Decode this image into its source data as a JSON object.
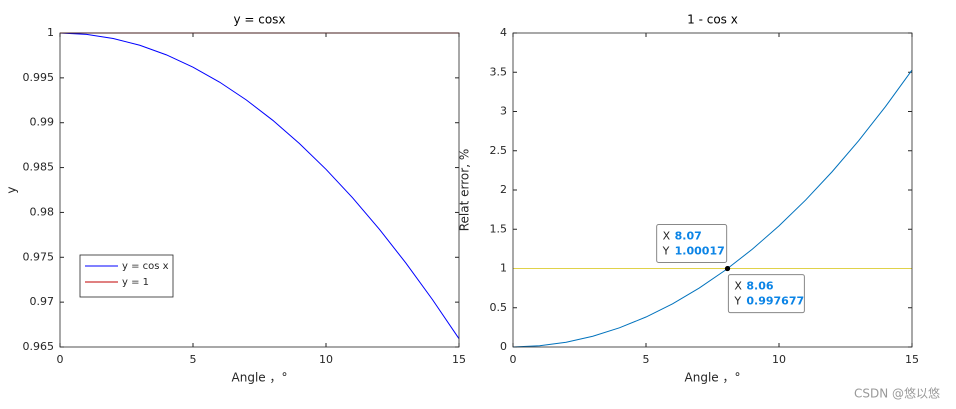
{
  "chart_data": [
    {
      "type": "line",
      "title": "y = cosx",
      "x_label": "Angle ，°",
      "y_label": "y",
      "x": [
        0,
        1,
        2,
        3,
        4,
        5,
        6,
        7,
        8,
        9,
        10,
        11,
        12,
        13,
        14,
        15
      ],
      "series": [
        {
          "name": "y = cos x",
          "color": "#0000ff",
          "values": [
            1,
            0.999848,
            0.999391,
            0.99863,
            0.997564,
            0.996195,
            0.994522,
            0.992546,
            0.990268,
            0.987688,
            0.984808,
            0.981627,
            0.978148,
            0.97437,
            0.970296,
            0.965926
          ]
        },
        {
          "name": "y = 1",
          "color": "#c00000",
          "values": [
            1,
            1,
            1,
            1,
            1,
            1,
            1,
            1,
            1,
            1,
            1,
            1,
            1,
            1,
            1,
            1
          ]
        }
      ],
      "xlim": [
        0,
        15
      ],
      "xticks": [
        0,
        5,
        10,
        15
      ],
      "ylim": [
        0.965,
        1
      ],
      "yticks": [
        0.965,
        0.97,
        0.975,
        0.98,
        0.985,
        0.99,
        0.995,
        1
      ],
      "legend": "lower left"
    },
    {
      "type": "line",
      "title": "1 - cos x",
      "x_label": "Angle ，°",
      "y_label": "Relat error, %",
      "x": [
        0,
        1,
        2,
        3,
        4,
        5,
        6,
        7,
        8,
        9,
        10,
        11,
        12,
        13,
        14,
        15
      ],
      "series": [
        {
          "color": "#0072bd",
          "values": [
            0,
            0.0152,
            0.0609,
            0.1372,
            0.2442,
            0.382,
            0.5508,
            0.751,
            0.9828,
            1.2465,
            1.5427,
            1.8717,
            2.2341,
            2.6304,
            3.0614,
            3.5276
          ]
        },
        {
          "color": "#e0d24a",
          "values": [
            1,
            1,
            1,
            1,
            1,
            1,
            1,
            1,
            1,
            1,
            1,
            1,
            1,
            1,
            1,
            1
          ]
        }
      ],
      "xlim": [
        0,
        15
      ],
      "xticks": [
        0,
        5,
        10,
        15
      ],
      "ylim": [
        0,
        4
      ],
      "yticks": [
        0,
        0.5,
        1,
        1.5,
        2,
        2.5,
        3,
        3.5,
        4
      ],
      "datatip_labels": [
        "X",
        "Y"
      ],
      "datatips": [
        {
          "x": 8.07,
          "y": 1.00017
        },
        {
          "x": 8.06,
          "y": 0.997677
        }
      ]
    }
  ],
  "watermark": "CSDN @悠以悠"
}
